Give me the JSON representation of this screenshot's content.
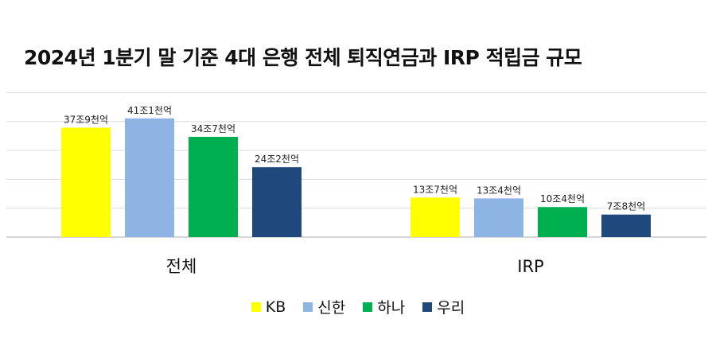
{
  "chart_data": {
    "type": "bar",
    "title": "2024년 1분기 말 기준 4대 은행 전체 퇴직연금과 IRP 적립금 규모",
    "categories": [
      "전체",
      "IRP"
    ],
    "series": [
      {
        "name": "KB",
        "color": "#FFFF00",
        "values": [
          37.9,
          13.7
        ],
        "labels": [
          "37조9천억",
          "13조7천억"
        ]
      },
      {
        "name": "신한",
        "color": "#8EB4E3",
        "values": [
          41.1,
          13.4
        ],
        "labels": [
          "41조1천억",
          "13조4천억"
        ]
      },
      {
        "name": "하나",
        "color": "#00B050",
        "values": [
          34.7,
          10.4
        ],
        "labels": [
          "34조7천억",
          "10조4천억"
        ]
      },
      {
        "name": "우리",
        "color": "#1F497D",
        "values": [
          24.2,
          7.8
        ],
        "labels": [
          "24조2천억",
          "7조8천억"
        ]
      }
    ],
    "ylim": [
      0,
      50
    ],
    "grid": true,
    "legend_position": "bottom"
  }
}
